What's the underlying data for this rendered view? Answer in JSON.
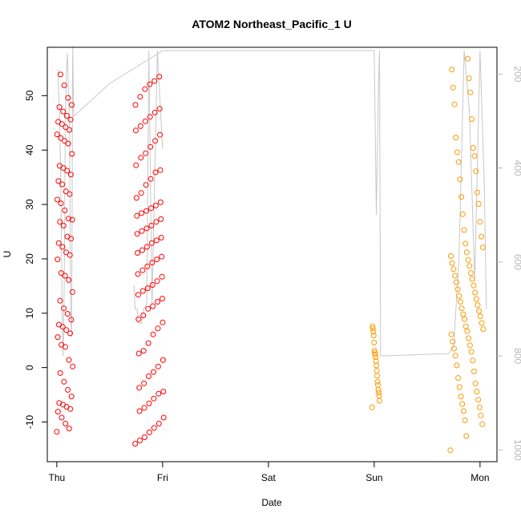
{
  "chart_data": {
    "type": "scatter",
    "title": "ATOM2 Northeast_Pacific_1 U",
    "xlabel": "Date",
    "ylabel": "U",
    "x_ticks": [
      "Thu",
      "Fri",
      "Sat",
      "Sun",
      "Mon"
    ],
    "x_range_days": [
      -0.09,
      4.16
    ],
    "y_ticks": [
      -10,
      0,
      10,
      20,
      30,
      40,
      50
    ],
    "ylim": [
      -17.3,
      58.9
    ],
    "right_axis": {
      "ticks": [
        200,
        400,
        600,
        800,
        1000
      ],
      "range": [
        143,
        1025
      ],
      "reversed": true,
      "color": "#b8b8b8"
    },
    "grid": false,
    "legend": "none",
    "colors": {
      "red": "#ff0000",
      "orange": "#ff9900",
      "depth_line": "#c8c8c8"
    },
    "series": [
      {
        "color": "red",
        "clusters": [
          {
            "x_range": [
              0.0,
              0.15
            ],
            "values": [
              -11.8,
              -11.2,
              -10.3,
              -9.2,
              -8.1,
              -7.6,
              -7.2,
              -6.8,
              -6.5,
              -5.3,
              -4.1,
              -2.6,
              -1.0,
              0.2,
              1.4,
              3.8,
              4.2,
              5.6,
              6.3,
              6.9,
              7.5,
              7.9,
              8.8,
              9.9,
              10.9,
              12.3,
              13.9,
              16.1,
              16.9,
              17.4,
              19.9,
              20.7,
              21.2,
              22.2,
              22.9,
              23.7,
              24.1,
              26.1,
              26.8,
              27.2,
              27.4,
              28.9,
              30.2,
              30.9,
              31.9,
              32.4,
              33.7,
              34.3,
              35.5,
              36.2,
              36.7,
              37.1,
              39.3,
              41.2,
              41.7,
              42.2,
              42.9,
              43.7,
              44.2,
              44.8,
              45.2,
              45.6,
              46.3,
              47.1,
              47.9,
              48.3,
              49.6,
              51.9,
              53.9
            ]
          },
          {
            "x_range": [
              0.74,
              1.01
            ],
            "values": [
              -14.0,
              -13.4,
              -12.8,
              -11.9,
              -11.1,
              -10.3,
              -9.2,
              -8.0,
              -7.4,
              -6.6,
              -5.7,
              -4.8,
              -4.4,
              -3.7,
              -2.9,
              -1.6,
              -0.8,
              0.2,
              1.4,
              2.6,
              3.1,
              4.5,
              6.1,
              7.2,
              8.3,
              8.9,
              9.6,
              10.8,
              11.3,
              12.1,
              12.7,
              13.4,
              14.1,
              14.6,
              15.2,
              15.9,
              16.7,
              17.2,
              17.9,
              18.6,
              19.3,
              19.9,
              20.4,
              21.1,
              21.6,
              22.2,
              22.9,
              23.4,
              23.9,
              24.6,
              25.1,
              25.6,
              26.1,
              26.8,
              27.3,
              27.9,
              28.4,
              28.8,
              29.3,
              29.8,
              30.4,
              31.2,
              32.1,
              33.6,
              34.7,
              35.9,
              36.3,
              37.2,
              38.6,
              39.4,
              40.6,
              41.7,
              42.8,
              43.6,
              44.4,
              45.3,
              46.1,
              46.9,
              47.6,
              48.3,
              49.8,
              51.2,
              52.1,
              52.7,
              53.5
            ]
          }
        ]
      },
      {
        "color": "orange",
        "clusters": [
          {
            "x_range": [
              -0.02,
              0.05
            ],
            "values": [
              -7.3,
              -6.1,
              -5.2,
              -4.6,
              -4.1,
              -3.2,
              -2.6,
              -1.5,
              -0.6,
              0.4,
              1.2,
              1.9,
              2.4,
              2.7,
              3.1,
              4.6,
              5.9,
              6.6,
              7.2,
              7.6
            ]
          },
          {
            "x_range": [
              0.72,
              1.03
            ],
            "values": [
              -15.2,
              -12.6,
              -10.4,
              -9.7,
              -8.8,
              -8.0,
              -7.3,
              -6.7,
              -5.9,
              -5.3,
              -4.4,
              -3.6,
              -2.9,
              -1.9,
              -0.7,
              0.4,
              1.3,
              2.2,
              2.9,
              3.5,
              4.1,
              4.8,
              5.4,
              6.1,
              6.7,
              7.1,
              7.6,
              8.2,
              8.9,
              9.4,
              9.8,
              10.4,
              10.9,
              11.5,
              12.1,
              12.6,
              13.2,
              13.8,
              14.4,
              15.1,
              15.7,
              16.3,
              16.9,
              17.4,
              18.1,
              18.7,
              19.2,
              19.8,
              20.5,
              21.2,
              22.1,
              22.8,
              24.1,
              25.3,
              26.8,
              28.2,
              30.1,
              31.4,
              32.2,
              34.6,
              36.1,
              37.8,
              38.9,
              39.6,
              40.4,
              42.3,
              45.7,
              48.4,
              50.6,
              51.5,
              53.2,
              54.8,
              56.8
            ]
          }
        ]
      }
    ]
  }
}
